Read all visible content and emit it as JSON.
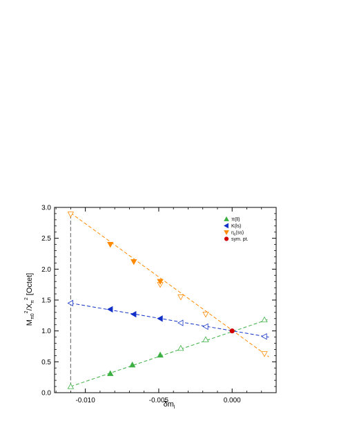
{
  "chart_data": {
    "type": "scatter",
    "title": "",
    "xlabel_main": "δm",
    "xlabel_sub": "l",
    "ylabel": {
      "p1": "M",
      "p1_sub": "π0",
      "p1_sup": "2",
      "p2": "/X",
      "p2_sub": "π",
      "p2_sup": "2",
      "p3": " [Octet]"
    },
    "xlim": [
      -0.0121,
      0.003
    ],
    "ylim": [
      0.0,
      3.0
    ],
    "x_ticks": [
      -0.01,
      -0.005,
      0.0
    ],
    "x_tick_labels": [
      "-0.010",
      "-0.005",
      "0.000"
    ],
    "y_ticks": [
      0.0,
      0.5,
      1.0,
      1.5,
      2.0,
      2.5,
      3.0
    ],
    "y_tick_labels": [
      "0.0",
      "0.5",
      "1.0",
      "1.5",
      "2.0",
      "2.5",
      "3.0"
    ],
    "legend_position": "top-right",
    "vline_x": -0.011,
    "series": [
      {
        "name": "π(ll)",
        "color": "#3cb043",
        "marker": "triangle-up",
        "fit_line": [
          [
            -0.011,
            0.1
          ],
          [
            0.0025,
            1.19
          ]
        ],
        "points_filled": [
          [
            -0.0083,
            0.31
          ],
          [
            -0.0068,
            0.45
          ],
          [
            -0.0049,
            0.61
          ]
        ],
        "points_open": [
          [
            -0.011,
            0.1
          ],
          [
            -0.0035,
            0.72
          ],
          [
            -0.0018,
            0.86
          ],
          [
            0.0022,
            1.18
          ]
        ]
      },
      {
        "name": "K(ls)",
        "color": "#1030c8",
        "marker": "triangle-left",
        "fit_line": [
          [
            -0.011,
            1.45
          ],
          [
            0.0025,
            0.9
          ]
        ],
        "points_filled": [
          [
            -0.0083,
            1.35
          ],
          [
            -0.0067,
            1.27
          ],
          [
            -0.0049,
            1.2
          ]
        ],
        "points_open": [
          [
            -0.011,
            1.45
          ],
          [
            -0.0035,
            1.13
          ],
          [
            -0.0018,
            1.07
          ],
          [
            0.0022,
            0.91
          ]
        ]
      },
      {
        "name": "η_s(ss)",
        "legend_main": "η",
        "legend_sub": "s",
        "legend_rest": "(ss)",
        "color": "#ff8a00",
        "marker": "triangle-down",
        "fit_line": [
          [
            -0.011,
            2.91
          ],
          [
            0.0025,
            0.58
          ]
        ],
        "points_filled": [
          [
            -0.0083,
            2.4
          ],
          [
            -0.0067,
            2.12
          ],
          [
            -0.0049,
            1.8
          ]
        ],
        "points_open": [
          [
            -0.011,
            2.89
          ],
          [
            -0.0049,
            1.75
          ],
          [
            -0.0035,
            1.55
          ],
          [
            -0.0018,
            1.27
          ],
          [
            0.0022,
            0.63
          ]
        ]
      },
      {
        "name": "sym. pt.",
        "color": "#d00000",
        "marker": "circle",
        "points_filled": [
          [
            0.0,
            1.0
          ]
        ]
      }
    ]
  }
}
